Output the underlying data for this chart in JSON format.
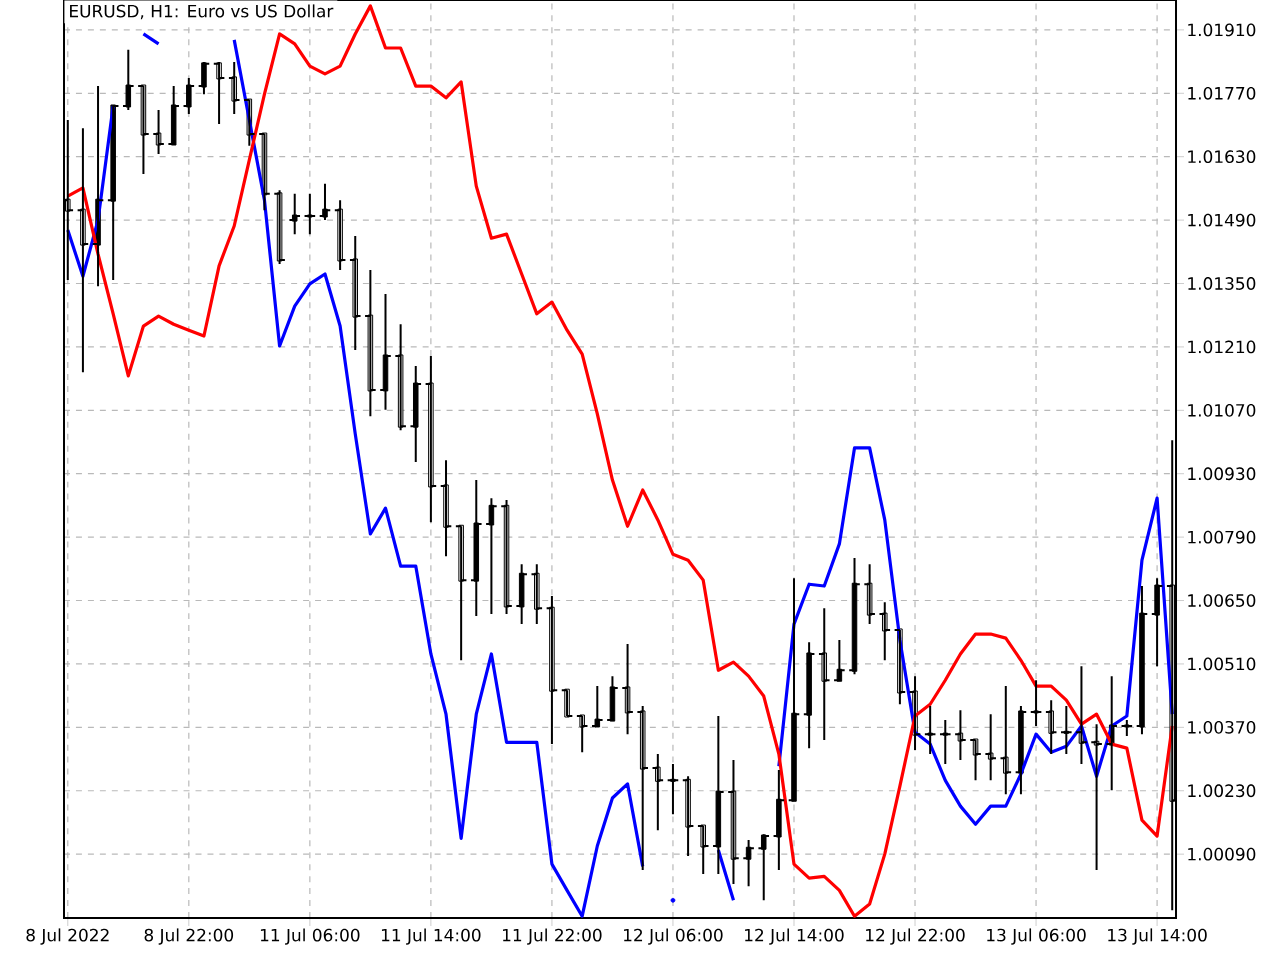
{
  "chart_data": {
    "type": "candlestick",
    "title": "EURUSD, H1:  Euro vs US Dollar",
    "categories": [
      "8 Jul 2022",
      null,
      null,
      null,
      null,
      null,
      null,
      null,
      "8 Jul 22:00",
      null,
      null,
      null,
      null,
      null,
      null,
      null,
      "11 Jul 06:00",
      null,
      null,
      null,
      null,
      null,
      null,
      null,
      "11 Jul 14:00",
      null,
      null,
      null,
      null,
      null,
      null,
      null,
      "11 Jul 22:00",
      null,
      null,
      null,
      null,
      null,
      null,
      null,
      "12 Jul 06:00",
      null,
      null,
      null,
      null,
      null,
      null,
      null,
      "12 Jul 14:00",
      null,
      null,
      null,
      null,
      null,
      null,
      null,
      "12 Jul 22:00",
      null,
      null,
      null,
      null,
      null,
      null,
      null,
      "13 Jul 06:00",
      null,
      null,
      null,
      null,
      null,
      null,
      null,
      "13 Jul 14:00",
      null
    ],
    "ohlc": [
      [
        1.01534,
        1.01711,
        1.01358,
        1.01512
      ],
      [
        1.01512,
        1.01693,
        1.01154,
        1.01437
      ],
      [
        1.01437,
        1.01786,
        1.01344,
        1.01534
      ],
      [
        1.01534,
        1.01742,
        1.01358,
        1.01742
      ],
      [
        1.01742,
        1.01866,
        1.01733,
        1.01786
      ],
      [
        1.01786,
        1.01786,
        1.01592,
        1.0168
      ],
      [
        1.0168,
        1.01733,
        1.01636,
        1.01658
      ],
      [
        1.01658,
        1.01786,
        1.01658,
        1.01742
      ],
      [
        1.01742,
        1.01804,
        1.01724,
        1.01786
      ],
      [
        1.01786,
        1.01839,
        1.01768,
        1.01835
      ],
      [
        1.01835,
        1.01839,
        1.01702,
        1.01804
      ],
      [
        1.01804,
        1.01839,
        1.01724,
        1.01755
      ],
      [
        1.01755,
        1.01755,
        1.01654,
        1.0168
      ],
      [
        1.0168,
        1.0168,
        1.01512,
        1.01548
      ],
      [
        1.01548,
        1.01556,
        1.01393,
        1.01402
      ],
      [
        1.0149,
        1.01548,
        1.01459,
        1.01499
      ],
      [
        1.01499,
        1.01548,
        1.01459,
        1.01499
      ],
      [
        1.01499,
        1.0157,
        1.0149,
        1.01512
      ],
      [
        1.01512,
        1.01534,
        1.0138,
        1.01402
      ],
      [
        1.01402,
        1.01455,
        1.01203,
        1.01278
      ],
      [
        1.01278,
        1.0138,
        1.01057,
        1.01115
      ],
      [
        1.01115,
        1.01327,
        1.01071,
        1.0119
      ],
      [
        1.0119,
        1.0126,
        1.01026,
        1.01035
      ],
      [
        1.01035,
        1.01168,
        1.00956,
        1.01128
      ],
      [
        1.01128,
        1.0119,
        1.00823,
        1.00903
      ],
      [
        1.00903,
        1.0096,
        1.00748,
        1.00814
      ],
      [
        1.00814,
        1.00814,
        1.00518,
        1.00695
      ],
      [
        1.00695,
        1.00916,
        1.00616,
        1.00819
      ],
      [
        1.00819,
        1.00876,
        1.0062,
        1.00858
      ],
      [
        1.00858,
        1.00872,
        1.0062,
        1.00638
      ],
      [
        1.00638,
        1.0073,
        1.00598,
        1.00708
      ],
      [
        1.00708,
        1.0073,
        1.00598,
        1.00633
      ],
      [
        1.00633,
        1.0066,
        1.00333,
        1.00452
      ],
      [
        1.00452,
        1.00452,
        1.00395,
        1.00395
      ],
      [
        1.00395,
        1.00395,
        1.00315,
        1.00373
      ],
      [
        1.00373,
        1.00461,
        1.00373,
        1.00386
      ],
      [
        1.00386,
        1.00483,
        1.00386,
        1.00457
      ],
      [
        1.00457,
        1.00554,
        1.00355,
        1.00404
      ],
      [
        1.00404,
        1.00417,
        1.00055,
        1.0028
      ],
      [
        1.0028,
        1.00311,
        1.00143,
        1.00253
      ],
      [
        1.00253,
        1.00289,
        1.00178,
        1.00253
      ],
      [
        1.00253,
        1.00262,
        1.00086,
        1.00152
      ],
      [
        1.00152,
        1.00152,
        1.00046,
        1.00108
      ],
      [
        1.00108,
        1.00395,
        1.00046,
        1.00227
      ],
      [
        1.00227,
        1.00298,
        1.00024,
        1.00081
      ],
      [
        1.00081,
        1.00121,
        1.00019,
        1.00103
      ],
      [
        1.00103,
        1.00134,
        0.99988,
        1.0013
      ],
      [
        1.0013,
        1.00276,
        1.00055,
        1.00209
      ],
      [
        1.00209,
        1.00699,
        1.00209,
        1.00399
      ],
      [
        1.00399,
        1.00558,
        1.00324,
        1.00532
      ],
      [
        1.00532,
        1.00633,
        1.00342,
        1.00474
      ],
      [
        1.00474,
        1.00563,
        1.00474,
        1.00496
      ],
      [
        1.00496,
        1.00744,
        1.00487,
        1.00686
      ],
      [
        1.00686,
        1.0073,
        1.00598,
        1.0062
      ],
      [
        1.0062,
        1.00646,
        1.00518,
        1.00585
      ],
      [
        1.00585,
        1.00585,
        1.00421,
        1.00448
      ],
      [
        1.00448,
        1.00483,
        1.0032,
        1.00355
      ],
      [
        1.00355,
        1.00417,
        1.00311,
        1.00355
      ],
      [
        1.00355,
        1.00386,
        1.00289,
        1.00355
      ],
      [
        1.00355,
        1.00408,
        1.00298,
        1.00342
      ],
      [
        1.00342,
        1.00342,
        1.00253,
        1.00311
      ],
      [
        1.00311,
        1.00399,
        1.00253,
        1.00302
      ],
      [
        1.00302,
        1.00461,
        1.00222,
        1.00271
      ],
      [
        1.00271,
        1.00417,
        1.00222,
        1.00404
      ],
      [
        1.00404,
        1.00474,
        1.00373,
        1.00404
      ],
      [
        1.00404,
        1.0043,
        1.00311,
        1.00359
      ],
      [
        1.00359,
        1.00417,
        1.00311,
        1.00359
      ],
      [
        1.00359,
        1.00505,
        1.00289,
        1.00337
      ],
      [
        1.00337,
        1.00377,
        1.00055,
        1.00333
      ],
      [
        1.00333,
        1.00483,
        1.00231,
        1.00373
      ],
      [
        1.00373,
        1.00386,
        1.00351,
        1.00373
      ],
      [
        1.00373,
        1.00682,
        1.00355,
        1.0062
      ],
      [
        1.0062,
        1.00699,
        1.00505,
        1.00682
      ],
      [
        1.00682,
        1.01004,
        0.99966,
        1.00209
      ]
    ],
    "series": [
      {
        "type": "line",
        "color": "#0000ff",
        "values": [
          1.01468,
          1.01366,
          1.0149,
          1.01742,
          null,
          1.01901,
          1.01879,
          null,
          null,
          null,
          null,
          1.01888,
          1.01711,
          1.01534,
          1.01212,
          1.013,
          1.01349,
          1.01371,
          1.01256,
          1.01018,
          1.00797,
          1.00854,
          1.00726,
          1.00726,
          1.00532,
          1.00399,
          1.00125,
          1.00399,
          1.00532,
          1.00337,
          1.00337,
          1.00337,
          1.00068,
          1.0001,
          0.99953,
          1.00108,
          1.00214,
          1.00245,
          1.00063,
          null,
          0.99988,
          null,
          null,
          1.00099,
          0.99988,
          null,
          null,
          1.00284,
          1.00598,
          1.00686,
          1.00682,
          1.00775,
          1.00987,
          1.00987,
          1.00828,
          1.00563,
          1.00359,
          1.00333,
          1.00253,
          1.00196,
          1.00156,
          1.00196,
          1.00196,
          1.00267,
          1.00355,
          1.00315,
          1.00328,
          1.00373,
          1.00262,
          1.00373,
          1.00395,
          1.00739,
          1.00876,
          1.00399
        ]
      },
      {
        "type": "line",
        "color": "#ff0000",
        "values": [
          1.01543,
          1.01561,
          1.01415,
          1.01283,
          1.01146,
          1.01256,
          1.01278,
          1.0126,
          1.01247,
          1.01234,
          1.01389,
          1.01477,
          1.01623,
          1.01768,
          1.01901,
          1.01879,
          1.0183,
          1.01813,
          1.0183,
          1.01901,
          1.01963,
          1.0187,
          1.0187,
          1.01786,
          1.01786,
          1.0176,
          1.01795,
          1.01565,
          1.0145,
          1.01459,
          1.01371,
          1.01283,
          1.01309,
          1.01247,
          1.01194,
          1.01062,
          1.00916,
          1.00814,
          1.00894,
          1.00828,
          1.00752,
          1.00739,
          1.00695,
          1.00496,
          1.00514,
          1.00483,
          1.00439,
          1.00311,
          1.00068,
          1.00037,
          1.00041,
          1.0001,
          0.99953,
          0.9998,
          1.0009,
          1.0024,
          1.00395,
          1.00421,
          1.00474,
          1.00532,
          1.00576,
          1.00576,
          1.00567,
          1.00518,
          1.00461,
          1.00461,
          1.0043,
          1.00377,
          1.00399,
          1.00333,
          1.00324,
          1.00165,
          1.0013,
          1.00373
        ]
      }
    ],
    "ylim": [
      0.99949,
      1.01976
    ],
    "yticks": [
      {
        "value": 1.0009,
        "label": "1.00090"
      },
      {
        "value": 1.0023,
        "label": "1.00230"
      },
      {
        "value": 1.0037,
        "label": "1.00370"
      },
      {
        "value": 1.0051,
        "label": "1.00510"
      },
      {
        "value": 1.0065,
        "label": "1.00650"
      },
      {
        "value": 1.0079,
        "label": "1.00790"
      },
      {
        "value": 1.0093,
        "label": "1.00930"
      },
      {
        "value": 1.0107,
        "label": "1.01070"
      },
      {
        "value": 1.0121,
        "label": "1.01210"
      },
      {
        "value": 1.0135,
        "label": "1.01350"
      },
      {
        "value": 1.0149,
        "label": "1.01490"
      },
      {
        "value": 1.0163,
        "label": "1.01630"
      },
      {
        "value": 1.0177,
        "label": "1.01770"
      },
      {
        "value": 1.0191,
        "label": "1.01910"
      }
    ],
    "grid": true
  }
}
